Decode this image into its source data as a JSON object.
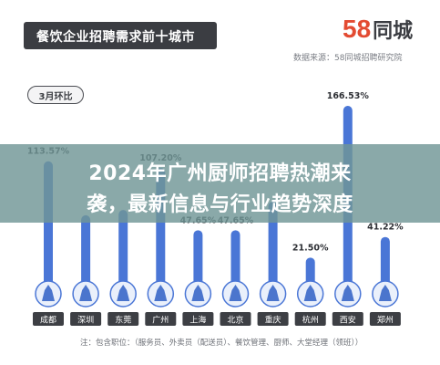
{
  "header": {
    "title": "餐饮企业招聘需求前十城市",
    "logo_number": "58",
    "logo_text": "同城",
    "source": "数据来源：58同城招聘研究院"
  },
  "badge": "3月环比",
  "overlay": {
    "line1": "2024年广州厨师招聘热潮来",
    "line2": "袭，最新信息与行业趋势深度"
  },
  "footnote": "注：包含职位：（服务员、外卖员（配送员）、餐饮管理、厨师、大堂经理（领班））",
  "colors": {
    "bar": "#4a76d6",
    "bar_dark": "#2f5fc4",
    "title_bg": "#3b3d42",
    "city_bg": "#3d3f44"
  },
  "chart_data": {
    "type": "bar",
    "title": "餐饮企业招聘需求前十城市",
    "xlabel": "",
    "ylabel": "",
    "categories": [
      "成都",
      "深圳",
      "东莞",
      "广州",
      "上海",
      "北京",
      "重庆",
      "杭州",
      "西安",
      "郑州"
    ],
    "values": [
      113.57,
      62,
      67,
      107.2,
      47.65,
      47.65,
      75,
      21.5,
      166.53,
      41.22
    ],
    "labels": [
      "113.57%",
      "",
      "",
      "107.20%",
      "47.65%",
      "47.65%",
      "",
      "21.50%",
      "166.53%",
      "41.22%"
    ],
    "ylim": [
      0,
      170
    ],
    "grid": false,
    "legend": "none"
  }
}
